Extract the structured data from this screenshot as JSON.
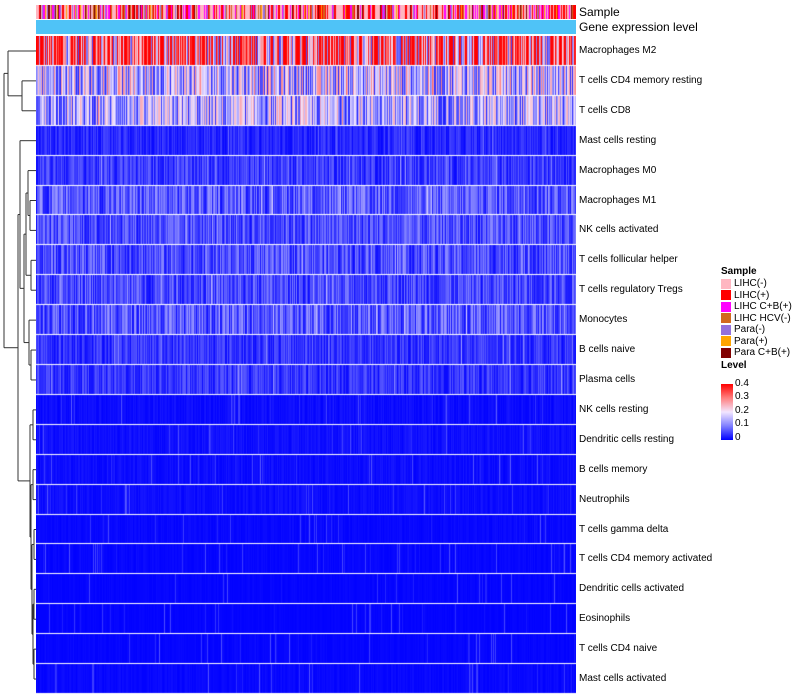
{
  "chart_data": {
    "type": "heatmap",
    "title": "",
    "annotations": {
      "top_labels": [
        "Sample",
        "Gene expression level"
      ]
    },
    "rows": [
      {
        "name": "Macrophages M2",
        "mean": 0.32
      },
      {
        "name": "T cells CD4 memory resting",
        "mean": 0.16
      },
      {
        "name": "T cells CD8",
        "mean": 0.14
      },
      {
        "name": "Mast cells resting",
        "mean": 0.03
      },
      {
        "name": "Macrophages M0",
        "mean": 0.045
      },
      {
        "name": "Macrophages M1",
        "mean": 0.07
      },
      {
        "name": "NK cells activated",
        "mean": 0.06
      },
      {
        "name": "T cells follicular helper",
        "mean": 0.06
      },
      {
        "name": "T cells regulatory  Tregs",
        "mean": 0.055
      },
      {
        "name": "Monocytes",
        "mean": 0.07
      },
      {
        "name": "B cells naive",
        "mean": 0.04
      },
      {
        "name": "Plasma cells",
        "mean": 0.04
      },
      {
        "name": "NK cells resting",
        "mean": 0.01
      },
      {
        "name": "Dendritic cells resting",
        "mean": 0.012
      },
      {
        "name": "B cells memory",
        "mean": 0.01
      },
      {
        "name": "Neutrophils",
        "mean": 0.01
      },
      {
        "name": "T cells gamma delta",
        "mean": 0.006
      },
      {
        "name": "T cells CD4 memory activated",
        "mean": 0.005
      },
      {
        "name": "Dendritic cells activated",
        "mean": 0.004
      },
      {
        "name": "Eosinophils",
        "mean": 0.003
      },
      {
        "name": "T cells CD4 naive",
        "mean": 0.004
      },
      {
        "name": "Mast cells activated",
        "mean": 0.006
      }
    ],
    "value_range": [
      0,
      0.4
    ],
    "legend_sample": {
      "title": "Sample",
      "entries": [
        {
          "label": "LIHC(-)",
          "color": "#ffb6c1"
        },
        {
          "label": "LIHC(+)",
          "color": "#ff0000"
        },
        {
          "label": "LIHC C+B(+)",
          "color": "#ff00ff"
        },
        {
          "label": "LIHC HCV(-)",
          "color": "#d2691e"
        },
        {
          "label": "Para(-)",
          "color": "#9370db"
        },
        {
          "label": "Para(+)",
          "color": "#ffa500"
        },
        {
          "label": "Para C+B(+)",
          "color": "#800000"
        }
      ]
    },
    "legend_level": {
      "title": "Level",
      "ticks": [
        "0.4",
        "0.3",
        "0.2",
        "0.1",
        "0"
      ]
    },
    "gene_expression_color": "#4fc3f7"
  }
}
